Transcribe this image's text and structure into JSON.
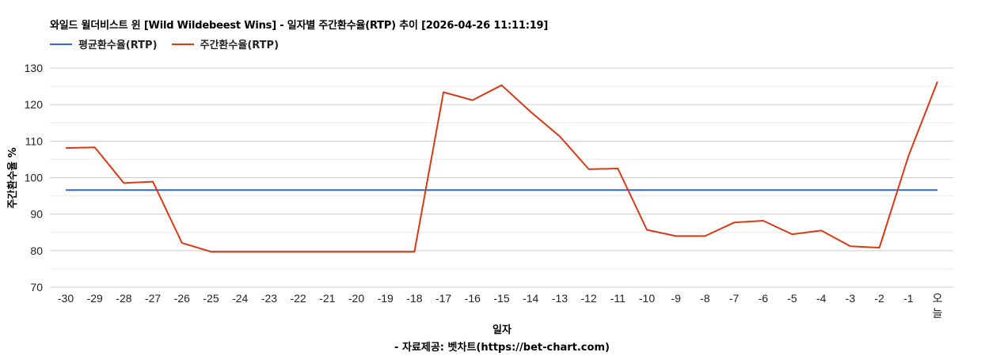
{
  "title": "와일드 윌더비스트 윈 [Wild Wildebeest Wins] - 일자별 주간환수율(RTP) 추이 [2026-04-26 11:11:19]",
  "legend": [
    {
      "label": "평균환수율(RTP)",
      "color": "#3366cc"
    },
    {
      "label": "주간환수율(RTP)",
      "color": "#dc3912"
    }
  ],
  "xlabel": "일자",
  "ylabel": "주간환수율 %",
  "source": "- 자료제공: 벳차트(https://bet-chart.com)",
  "chart_data": {
    "type": "line",
    "title": "와일드 윌더비스트 윈 [Wild Wildebeest Wins] - 일자별 주간환수율(RTP) 추이 [2026-04-26 11:11:19]",
    "xlabel": "일자",
    "ylabel": "주간환수율 %",
    "ylim": [
      70,
      130
    ],
    "yticks": [
      70,
      80,
      90,
      100,
      110,
      120,
      130
    ],
    "grid": true,
    "legend_position": "top-left",
    "categories": [
      "-30",
      "-29",
      "-28",
      "-27",
      "-26",
      "-25",
      "-24",
      "-23",
      "-22",
      "-21",
      "-20",
      "-19",
      "-18",
      "-17",
      "-16",
      "-15",
      "-14",
      "-13",
      "-12",
      "-11",
      "-10",
      "-9",
      "-8",
      "-7",
      "-6",
      "-5",
      "-4",
      "-3",
      "-2",
      "-1",
      "오늘"
    ],
    "series": [
      {
        "name": "평균환수율(RTP)",
        "color": "#3366cc",
        "values": [
          96.6,
          96.6,
          96.6,
          96.6,
          96.6,
          96.6,
          96.6,
          96.6,
          96.6,
          96.6,
          96.6,
          96.6,
          96.6,
          96.6,
          96.6,
          96.6,
          96.6,
          96.6,
          96.6,
          96.6,
          96.6,
          96.6,
          96.6,
          96.6,
          96.6,
          96.6,
          96.6,
          96.6,
          96.6,
          96.6,
          96.6
        ]
      },
      {
        "name": "주간환수율(RTP)",
        "color": "#dc3912",
        "values": [
          108.1,
          108.3,
          98.5,
          98.9,
          82.1,
          79.7,
          79.7,
          79.7,
          79.7,
          79.7,
          79.7,
          79.7,
          79.7,
          123.4,
          121.2,
          125.3,
          118.0,
          111.3,
          102.3,
          102.5,
          85.7,
          84.0,
          84.0,
          87.7,
          88.2,
          84.5,
          85.5,
          81.2,
          80.8,
          105.9,
          126.3
        ]
      }
    ]
  }
}
